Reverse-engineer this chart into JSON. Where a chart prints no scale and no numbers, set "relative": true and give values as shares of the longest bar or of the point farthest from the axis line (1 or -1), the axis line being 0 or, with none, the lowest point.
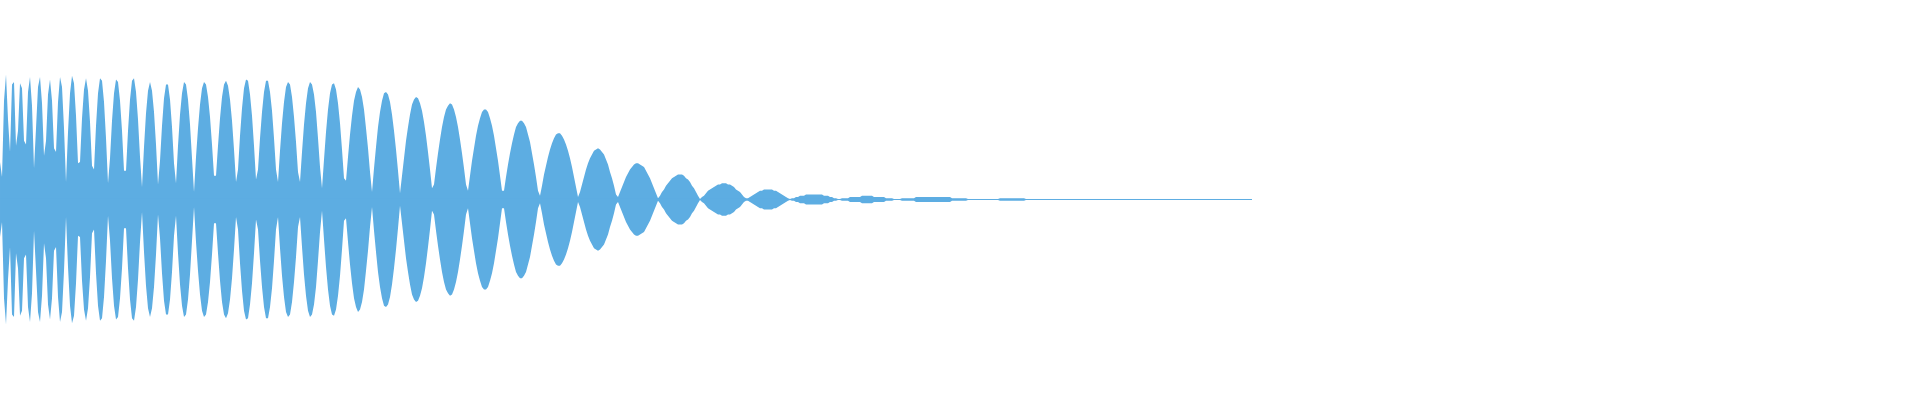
{
  "chart_data": {
    "type": "area",
    "relative": true,
    "ref_lines": [
      {
        "axis": "y",
        "value": 0,
        "color": "#5dade2"
      }
    ],
    "categories": [
      null,
      null,
      null,
      null,
      null,
      null,
      null,
      null,
      null,
      null,
      null,
      null,
      null,
      null,
      null,
      null,
      null,
      null,
      null,
      null,
      null,
      null,
      null,
      null,
      null,
      null,
      null,
      null,
      null,
      null,
      null,
      null,
      null,
      null,
      null,
      null,
      null,
      null,
      null,
      null,
      null,
      null,
      null,
      null,
      null,
      null,
      null,
      null,
      null,
      null,
      null,
      null,
      null,
      null,
      null,
      null,
      null,
      null,
      null,
      null,
      null,
      null,
      null,
      null,
      null,
      null,
      null,
      null,
      null,
      null,
      null,
      null,
      null,
      null,
      null,
      null,
      null,
      null,
      null,
      null,
      null,
      null,
      null,
      null,
      null,
      null,
      null,
      null,
      null,
      null,
      null,
      null,
      null,
      null,
      null,
      null,
      null,
      null,
      null,
      null,
      null,
      null,
      null,
      null,
      null,
      null,
      null,
      null,
      null,
      null,
      null,
      null,
      null,
      null,
      null,
      null,
      null,
      null,
      null,
      null,
      null,
      null,
      null,
      null,
      null,
      null,
      null,
      null,
      null,
      null,
      null,
      null,
      null,
      null,
      null,
      null,
      null,
      null,
      null,
      null,
      null,
      null,
      null,
      null,
      null,
      null,
      null,
      null,
      null,
      null,
      null,
      null,
      null,
      null,
      null,
      null,
      null,
      null,
      null,
      null,
      null,
      null,
      null,
      null,
      null,
      null,
      null,
      null,
      null,
      null,
      null,
      null,
      null,
      null,
      null,
      null,
      null,
      null,
      null,
      null,
      null,
      null,
      null,
      null,
      null,
      null,
      null,
      null,
      null,
      null,
      null,
      null,
      null,
      null,
      null,
      null,
      null,
      null,
      null,
      null,
      null,
      null,
      null,
      null,
      null,
      null,
      null,
      null,
      null,
      null,
      null,
      null,
      null,
      null,
      null,
      null,
      null,
      null,
      null,
      null,
      null,
      null,
      null,
      null,
      null,
      null,
      null,
      null,
      null,
      null,
      null,
      null,
      null,
      null,
      null,
      null,
      null,
      null,
      null,
      null,
      null,
      null,
      null,
      null,
      null,
      null,
      null,
      null,
      null,
      null,
      null,
      null,
      null,
      null,
      null,
      null,
      null,
      null,
      null,
      null,
      null,
      null,
      null,
      null,
      null,
      null,
      null,
      null,
      null,
      null,
      null,
      null,
      null,
      null,
      null,
      null,
      null,
      null,
      null,
      null,
      null,
      null,
      null,
      null,
      null,
      null,
      null,
      null,
      null,
      null,
      null,
      null,
      null,
      null,
      null,
      null,
      null,
      null,
      null,
      null,
      null,
      null,
      null,
      null,
      null,
      null,
      null,
      null,
      null,
      null,
      null,
      null,
      null,
      null,
      null,
      null,
      null,
      null,
      null,
      null,
      null,
      null,
      null,
      null,
      null,
      null,
      null,
      null,
      null,
      null,
      null,
      null,
      null,
      null,
      null,
      null,
      null,
      null,
      null,
      null,
      null,
      null,
      null,
      null,
      null,
      null,
      null,
      null,
      null,
      null,
      null,
      null,
      null,
      null,
      null,
      null,
      null,
      null,
      null,
      null,
      null,
      null,
      null,
      null,
      null,
      null,
      null,
      null,
      null,
      null,
      null,
      null,
      null,
      null,
      null,
      null,
      null,
      null,
      null,
      null,
      null,
      null,
      null,
      null,
      null,
      null,
      null,
      null,
      null,
      null,
      null,
      null,
      null,
      null,
      null,
      null,
      null,
      null,
      null,
      null,
      null,
      null,
      null,
      null,
      null,
      null,
      null,
      null,
      null,
      null,
      null,
      null,
      null,
      null,
      null,
      null,
      null,
      null,
      null,
      null,
      null,
      null,
      null,
      null,
      null,
      null,
      null,
      null,
      null,
      null,
      null,
      null,
      null,
      null,
      null,
      null,
      null,
      null,
      null,
      null,
      null,
      null,
      null,
      null,
      null,
      null,
      null,
      null,
      null,
      null,
      null,
      null,
      null,
      null,
      null,
      null,
      null,
      null,
      null,
      null,
      null,
      null,
      null,
      null,
      null,
      null,
      null,
      null,
      null,
      null,
      null,
      null,
      null,
      null,
      null,
      null,
      null,
      null,
      null,
      null,
      null,
      null,
      null,
      null,
      null,
      null,
      null,
      null,
      null,
      null,
      null,
      null,
      null,
      null,
      null,
      null,
      null,
      null,
      null,
      null,
      null,
      null,
      null,
      null,
      null,
      null,
      null,
      null,
      null,
      null,
      null,
      null,
      null,
      null,
      null,
      null,
      null,
      null,
      null,
      null,
      null,
      null,
      null,
      null,
      null,
      null,
      null,
      null,
      null,
      null,
      null,
      null,
      null,
      null,
      null,
      null,
      null,
      null,
      null,
      null,
      null,
      null,
      null,
      null,
      null,
      null,
      null,
      null,
      null,
      null,
      null,
      null,
      null,
      null,
      null,
      null,
      null,
      null,
      null,
      null,
      null,
      null,
      null,
      null,
      null,
      null,
      null,
      null,
      null,
      null,
      null,
      null,
      null,
      null,
      null,
      null,
      null,
      null,
      null,
      null,
      null,
      null,
      null,
      null,
      null,
      null,
      null,
      null,
      null,
      null,
      null,
      null,
      null,
      null,
      null,
      null,
      null,
      null,
      null,
      null,
      null,
      null,
      null,
      null,
      null,
      null,
      null,
      null,
      null,
      null,
      null,
      null,
      null,
      null,
      null,
      null,
      null,
      null,
      null,
      null,
      null,
      null,
      null,
      null,
      null,
      null,
      null
    ],
    "series": [
      {
        "color": "#5dade2",
        "values": [
          0.3,
          0.18,
          0.79,
          1.0,
          0.64,
          0.38,
          0.92,
          0.94,
          0.43,
          0.55,
          0.93,
          0.89,
          0.47,
          0.44,
          0.86,
          0.98,
          0.75,
          0.25,
          0.57,
          0.9,
          0.98,
          0.77,
          0.35,
          0.47,
          0.84,
          0.96,
          0.79,
          0.41,
          0.38,
          0.78,
          0.98,
          0.9,
          0.57,
          0.14,
          0.54,
          0.85,
          0.99,
          0.93,
          0.67,
          0.29,
          0.3,
          0.65,
          0.88,
          0.97,
          0.87,
          0.62,
          0.27,
          0.24,
          0.59,
          0.85,
          0.97,
          0.95,
          0.78,
          0.49,
          0.13,
          0.33,
          0.63,
          0.85,
          0.96,
          0.94,
          0.79,
          0.55,
          0.23,
          0.23,
          0.55,
          0.8,
          0.95,
          0.97,
          0.86,
          0.64,
          0.34,
          0.1,
          0.42,
          0.69,
          0.87,
          0.94,
          0.87,
          0.7,
          0.44,
          0.12,
          0.31,
          0.59,
          0.81,
          0.92,
          0.92,
          0.8,
          0.58,
          0.29,
          0.13,
          0.43,
          0.68,
          0.85,
          0.94,
          0.92,
          0.8,
          0.6,
          0.33,
          0.06,
          0.34,
          0.57,
          0.76,
          0.89,
          0.94,
          0.92,
          0.82,
          0.66,
          0.44,
          0.19,
          0.19,
          0.43,
          0.65,
          0.82,
          0.92,
          0.95,
          0.91,
          0.8,
          0.63,
          0.4,
          0.14,
          0.24,
          0.51,
          0.73,
          0.89,
          0.96,
          0.95,
          0.84,
          0.67,
          0.43,
          0.16,
          0.24,
          0.49,
          0.7,
          0.86,
          0.95,
          0.95,
          0.86,
          0.71,
          0.49,
          0.24,
          0.14,
          0.39,
          0.61,
          0.78,
          0.9,
          0.94,
          0.92,
          0.82,
          0.66,
          0.46,
          0.22,
          0.14,
          0.38,
          0.6,
          0.77,
          0.89,
          0.94,
          0.92,
          0.84,
          0.7,
          0.49,
          0.26,
          0.09,
          0.32,
          0.54,
          0.72,
          0.85,
          0.92,
          0.93,
          0.88,
          0.77,
          0.61,
          0.4,
          0.17,
          0.15,
          0.34,
          0.52,
          0.67,
          0.79,
          0.86,
          0.9,
          0.88,
          0.82,
          0.72,
          0.57,
          0.41,
          0.22,
          0.06,
          0.25,
          0.42,
          0.58,
          0.7,
          0.79,
          0.85,
          0.86,
          0.84,
          0.78,
          0.68,
          0.55,
          0.4,
          0.23,
          0.05,
          0.19,
          0.33,
          0.47,
          0.58,
          0.68,
          0.76,
          0.8,
          0.82,
          0.81,
          0.77,
          0.71,
          0.62,
          0.51,
          0.38,
          0.24,
          0.09,
          0.12,
          0.25,
          0.37,
          0.48,
          0.58,
          0.66,
          0.72,
          0.75,
          0.77,
          0.76,
          0.72,
          0.66,
          0.58,
          0.48,
          0.37,
          0.25,
          0.12,
          0.07,
          0.19,
          0.31,
          0.41,
          0.51,
          0.59,
          0.65,
          0.7,
          0.72,
          0.72,
          0.7,
          0.65,
          0.59,
          0.51,
          0.41,
          0.31,
          0.19,
          0.07,
          0.07,
          0.18,
          0.28,
          0.37,
          0.45,
          0.52,
          0.58,
          0.61,
          0.63,
          0.63,
          0.61,
          0.58,
          0.52,
          0.46,
          0.37,
          0.28,
          0.18,
          0.07,
          0.03,
          0.11,
          0.2,
          0.27,
          0.34,
          0.4,
          0.45,
          0.49,
          0.52,
          0.53,
          0.53,
          0.51,
          0.48,
          0.44,
          0.39,
          0.33,
          0.26,
          0.18,
          0.1,
          0.02,
          0.06,
          0.12,
          0.18,
          0.24,
          0.29,
          0.33,
          0.36,
          0.39,
          0.4,
          0.41,
          0.4,
          0.38,
          0.36,
          0.32,
          0.28,
          0.22,
          0.17,
          0.11,
          0.04,
          0.02,
          0.06,
          0.1,
          0.14,
          0.18,
          0.21,
          0.24,
          0.26,
          0.28,
          0.29,
          0.29,
          0.28,
          0.27,
          0.26,
          0.23,
          0.2,
          0.17,
          0.13,
          0.09,
          0.05,
          0.01,
          0.03,
          0.06,
          0.08,
          0.11,
          0.13,
          0.15,
          0.17,
          0.18,
          0.19,
          0.2,
          0.2,
          0.2,
          0.19,
          0.17,
          0.16,
          0.14,
          0.11,
          0.09,
          0.06,
          0.03,
          0.004,
          0.02,
          0.03,
          0.05,
          0.07,
          0.08,
          0.09,
          0.1,
          0.11,
          0.12,
          0.12,
          0.13,
          0.13,
          0.13,
          0.12,
          0.12,
          0.11,
          0.1,
          0.08,
          0.07,
          0.06,
          0.04,
          0.02,
          0.01,
          0.01,
          0.02,
          0.03,
          0.04,
          0.05,
          0.06,
          0.07,
          0.07,
          0.08,
          0.08,
          0.08,
          0.08,
          0.08,
          0.07,
          0.07,
          0.06,
          0.05,
          0.04,
          0.03,
          0.02,
          0.01,
          0.004,
          0.01,
          0.01,
          0.02,
          0.02,
          0.03,
          0.03,
          0.03,
          0.04,
          0.04,
          0.04,
          0.04,
          0.04,
          0.04,
          0.04,
          0.04,
          0.04,
          0.03,
          0.03,
          0.03,
          0.02,
          0.02,
          0.01,
          0.01,
          0.004,
          0.004,
          0.01,
          0.01,
          0.01,
          0.01,
          0.02,
          0.02,
          0.02,
          0.02,
          0.02,
          0.02,
          0.03,
          0.03,
          0.03,
          0.03,
          0.03,
          0.03,
          0.02,
          0.02,
          0.02,
          0.02,
          0.02,
          0.02,
          0.01,
          0.01,
          0.01,
          0.01,
          0.004,
          0.004,
          0.004,
          0.004,
          0.01,
          0.01,
          0.01,
          0.01,
          0.01,
          0.01,
          0.01,
          0.02,
          0.02,
          0.02,
          0.02,
          0.02,
          0.02,
          0.02,
          0.02,
          0.02,
          0.02,
          0.02,
          0.02,
          0.02,
          0.02,
          0.02,
          0.02,
          0.02,
          0.02,
          0.01,
          0.01,
          0.01,
          0.01,
          0.01,
          0.01,
          0.01,
          0.01,
          0.004,
          0.004,
          0,
          0,
          0,
          0,
          0,
          0.004,
          0.004,
          0.004,
          0.004,
          0.004,
          0.004,
          0.004,
          0.004,
          0.004,
          0.01,
          0.01,
          0.01,
          0.01,
          0.01,
          0.01,
          0.01,
          0.01,
          0.01,
          0.01,
          0.01,
          0.01,
          0.01,
          0.004,
          0.004,
          0.004,
          0.004,
          0.004,
          0.004,
          0.004,
          0.004,
          0.004,
          0.004,
          0.004,
          0.004,
          0.004,
          0,
          0,
          0,
          0,
          0,
          0,
          0,
          0,
          0.004,
          0.004,
          0.004,
          0.004,
          0.004,
          0.004,
          0.004,
          0.004,
          0.004,
          0.004,
          0.004,
          0.004,
          0.004,
          0.004,
          0.004,
          0.004,
          0.004,
          0.004,
          0.004,
          0.004,
          0.004,
          0.004,
          0.004,
          0.004,
          0.004,
          0.004,
          0.004,
          0.004,
          0.004,
          0.004,
          0.004,
          0.004,
          0.004,
          0.004,
          0.004,
          0.004,
          0.004,
          0.004,
          0.004,
          0.004,
          0,
          0,
          0,
          0,
          0,
          0,
          0,
          0,
          0,
          0,
          0,
          0,
          0,
          0,
          0,
          0,
          0,
          0,
          0,
          0,
          0.004,
          0.004,
          0.004,
          0.004,
          0.004,
          0.004,
          0.004,
          0.004,
          0.004,
          0.004,
          0.004,
          0.004,
          0.004,
          0.004,
          0.004,
          0.004,
          0.004,
          0.004,
          0.004,
          0.004,
          0.004,
          0.004,
          0.004,
          0.004,
          0.004,
          0.004,
          0.004,
          0.004,
          0.004,
          0.004,
          0.004,
          0.004,
          0.004
        ]
      },
      {
        "color": "#5dade2",
        "values": [
          -0.3,
          -0.18,
          -0.79,
          -1.0,
          -0.64,
          -0.38,
          -0.92,
          -0.94,
          -0.43,
          -0.55,
          -0.93,
          -0.89,
          -0.47,
          -0.44,
          -0.86,
          -0.98,
          -0.75,
          -0.25,
          -0.57,
          -0.9,
          -0.98,
          -0.77,
          -0.35,
          -0.47,
          -0.84,
          -0.96,
          -0.79,
          -0.41,
          -0.38,
          -0.78,
          -0.98,
          -0.9,
          -0.57,
          -0.14,
          -0.54,
          -0.85,
          -0.99,
          -0.93,
          -0.67,
          -0.29,
          -0.3,
          -0.65,
          -0.88,
          -0.97,
          -0.87,
          -0.62,
          -0.27,
          -0.24,
          -0.59,
          -0.85,
          -0.97,
          -0.95,
          -0.78,
          -0.49,
          -0.13,
          -0.33,
          -0.63,
          -0.85,
          -0.96,
          -0.94,
          -0.79,
          -0.55,
          -0.23,
          -0.23,
          -0.55,
          -0.8,
          -0.95,
          -0.97,
          -0.86,
          -0.64,
          -0.34,
          -0.1,
          -0.42,
          -0.69,
          -0.87,
          -0.94,
          -0.87,
          -0.7,
          -0.44,
          -0.12,
          -0.31,
          -0.59,
          -0.81,
          -0.92,
          -0.92,
          -0.8,
          -0.58,
          -0.29,
          -0.13,
          -0.43,
          -0.68,
          -0.85,
          -0.94,
          -0.92,
          -0.8,
          -0.6,
          -0.33,
          -0.06,
          -0.34,
          -0.57,
          -0.76,
          -0.89,
          -0.94,
          -0.92,
          -0.82,
          -0.66,
          -0.44,
          -0.19,
          -0.19,
          -0.43,
          -0.65,
          -0.82,
          -0.92,
          -0.95,
          -0.91,
          -0.8,
          -0.63,
          -0.4,
          -0.14,
          -0.24,
          -0.51,
          -0.73,
          -0.89,
          -0.96,
          -0.95,
          -0.84,
          -0.67,
          -0.43,
          -0.16,
          -0.24,
          -0.49,
          -0.7,
          -0.86,
          -0.95,
          -0.95,
          -0.86,
          -0.71,
          -0.49,
          -0.24,
          -0.14,
          -0.39,
          -0.61,
          -0.78,
          -0.9,
          -0.94,
          -0.92,
          -0.82,
          -0.66,
          -0.46,
          -0.22,
          -0.14,
          -0.38,
          -0.6,
          -0.77,
          -0.89,
          -0.94,
          -0.92,
          -0.84,
          -0.7,
          -0.49,
          -0.26,
          -0.09,
          -0.32,
          -0.54,
          -0.72,
          -0.85,
          -0.92,
          -0.93,
          -0.88,
          -0.77,
          -0.61,
          -0.4,
          -0.17,
          -0.15,
          -0.34,
          -0.52,
          -0.67,
          -0.79,
          -0.86,
          -0.9,
          -0.88,
          -0.82,
          -0.72,
          -0.57,
          -0.41,
          -0.22,
          -0.06,
          -0.25,
          -0.42,
          -0.58,
          -0.7,
          -0.79,
          -0.85,
          -0.86,
          -0.84,
          -0.78,
          -0.68,
          -0.55,
          -0.4,
          -0.23,
          -0.05,
          -0.19,
          -0.33,
          -0.47,
          -0.58,
          -0.68,
          -0.76,
          -0.8,
          -0.82,
          -0.81,
          -0.77,
          -0.71,
          -0.62,
          -0.51,
          -0.38,
          -0.24,
          -0.09,
          -0.12,
          -0.25,
          -0.37,
          -0.48,
          -0.58,
          -0.66,
          -0.72,
          -0.75,
          -0.77,
          -0.76,
          -0.72,
          -0.66,
          -0.58,
          -0.48,
          -0.37,
          -0.25,
          -0.12,
          -0.07,
          -0.19,
          -0.31,
          -0.41,
          -0.51,
          -0.59,
          -0.65,
          -0.7,
          -0.72,
          -0.72,
          -0.7,
          -0.65,
          -0.59,
          -0.51,
          -0.41,
          -0.31,
          -0.19,
          -0.07,
          -0.07,
          -0.18,
          -0.28,
          -0.37,
          -0.45,
          -0.52,
          -0.58,
          -0.61,
          -0.63,
          -0.63,
          -0.61,
          -0.58,
          -0.52,
          -0.46,
          -0.37,
          -0.28,
          -0.18,
          -0.07,
          -0.03,
          -0.11,
          -0.2,
          -0.27,
          -0.34,
          -0.4,
          -0.45,
          -0.49,
          -0.52,
          -0.53,
          -0.53,
          -0.51,
          -0.48,
          -0.44,
          -0.39,
          -0.33,
          -0.26,
          -0.18,
          -0.1,
          -0.02,
          -0.06,
          -0.12,
          -0.18,
          -0.24,
          -0.29,
          -0.33,
          -0.36,
          -0.39,
          -0.4,
          -0.41,
          -0.4,
          -0.38,
          -0.36,
          -0.32,
          -0.28,
          -0.22,
          -0.17,
          -0.11,
          -0.04,
          -0.02,
          -0.06,
          -0.1,
          -0.14,
          -0.18,
          -0.21,
          -0.24,
          -0.26,
          -0.28,
          -0.29,
          -0.29,
          -0.28,
          -0.27,
          -0.26,
          -0.23,
          -0.2,
          -0.17,
          -0.13,
          -0.09,
          -0.05,
          -0.01,
          -0.03,
          -0.06,
          -0.08,
          -0.11,
          -0.13,
          -0.15,
          -0.17,
          -0.18,
          -0.19,
          -0.2,
          -0.2,
          -0.2,
          -0.19,
          -0.17,
          -0.16,
          -0.14,
          -0.11,
          -0.09,
          -0.06,
          -0.03,
          -0.004,
          -0.02,
          -0.03,
          -0.05,
          -0.07,
          -0.08,
          -0.09,
          -0.1,
          -0.11,
          -0.12,
          -0.12,
          -0.13,
          -0.13,
          -0.13,
          -0.12,
          -0.12,
          -0.11,
          -0.1,
          -0.08,
          -0.07,
          -0.06,
          -0.04,
          -0.02,
          -0.01,
          -0.01,
          -0.02,
          -0.03,
          -0.04,
          -0.05,
          -0.06,
          -0.07,
          -0.07,
          -0.08,
          -0.08,
          -0.08,
          -0.08,
          -0.08,
          -0.07,
          -0.07,
          -0.06,
          -0.05,
          -0.04,
          -0.03,
          -0.02,
          -0.01,
          -0.004,
          -0.01,
          -0.01,
          -0.02,
          -0.02,
          -0.03,
          -0.03,
          -0.03,
          -0.04,
          -0.04,
          -0.04,
          -0.04,
          -0.04,
          -0.04,
          -0.04,
          -0.04,
          -0.04,
          -0.03,
          -0.03,
          -0.03,
          -0.02,
          -0.02,
          -0.01,
          -0.01,
          -0.004,
          -0.004,
          -0.01,
          -0.01,
          -0.01,
          -0.01,
          -0.02,
          -0.02,
          -0.02,
          -0.02,
          -0.02,
          -0.02,
          -0.03,
          -0.03,
          -0.03,
          -0.03,
          -0.03,
          -0.03,
          -0.02,
          -0.02,
          -0.02,
          -0.02,
          -0.02,
          -0.02,
          -0.01,
          -0.01,
          -0.01,
          -0.01,
          -0.004,
          -0.004,
          -0.004,
          -0.004,
          -0.01,
          -0.01,
          -0.01,
          -0.01,
          -0.01,
          -0.01,
          -0.01,
          -0.02,
          -0.02,
          -0.02,
          -0.02,
          -0.02,
          -0.02,
          -0.02,
          -0.02,
          -0.02,
          -0.02,
          -0.02,
          -0.02,
          -0.02,
          -0.02,
          -0.02,
          -0.02,
          -0.02,
          -0.02,
          -0.01,
          -0.01,
          -0.01,
          -0.01,
          -0.01,
          -0.01,
          -0.01,
          -0.01,
          -0.004,
          -0.004,
          0,
          0,
          0,
          0,
          0,
          -0.004,
          -0.004,
          -0.004,
          -0.004,
          -0.004,
          -0.004,
          -0.004,
          -0.004,
          -0.004,
          -0.01,
          -0.01,
          -0.01,
          -0.01,
          -0.01,
          -0.01,
          -0.01,
          -0.01,
          -0.01,
          -0.01,
          -0.01,
          -0.01,
          -0.01,
          -0.004,
          -0.004,
          -0.004,
          -0.004,
          -0.004,
          -0.004,
          -0.004,
          -0.004,
          -0.004,
          -0.004,
          -0.004,
          -0.004,
          -0.004,
          0,
          0,
          0,
          0,
          0,
          0,
          0,
          0,
          -0.004,
          -0.004,
          -0.004,
          -0.004,
          -0.004,
          -0.004,
          -0.004,
          -0.004,
          -0.004,
          -0.004,
          -0.004,
          -0.004,
          -0.004,
          -0.004,
          -0.004,
          -0.004,
          -0.004,
          -0.004,
          -0.004,
          -0.004,
          -0.004,
          -0.004,
          -0.004,
          -0.004,
          -0.004,
          -0.004,
          -0.004,
          -0.004,
          -0.004,
          -0.004,
          -0.004,
          -0.004,
          -0.004,
          -0.004,
          -0.004,
          -0.004,
          -0.004,
          -0.004,
          -0.004,
          -0.004,
          0,
          0,
          0,
          0,
          0,
          0,
          0,
          0,
          0,
          0,
          0,
          0,
          0,
          0,
          0,
          0,
          0,
          0,
          0,
          0,
          -0.004,
          -0.004,
          -0.004,
          -0.004,
          -0.004,
          -0.004,
          -0.004,
          -0.004,
          -0.004,
          -0.004,
          -0.004,
          -0.004,
          -0.004,
          -0.004,
          -0.004,
          -0.004,
          -0.004,
          -0.004,
          -0.004,
          -0.004,
          -0.004,
          -0.004,
          -0.004,
          -0.004,
          -0.004,
          -0.004,
          -0.004,
          -0.004,
          -0.004,
          -0.004,
          -0.004,
          -0.004,
          -0.004
        ]
      }
    ]
  }
}
